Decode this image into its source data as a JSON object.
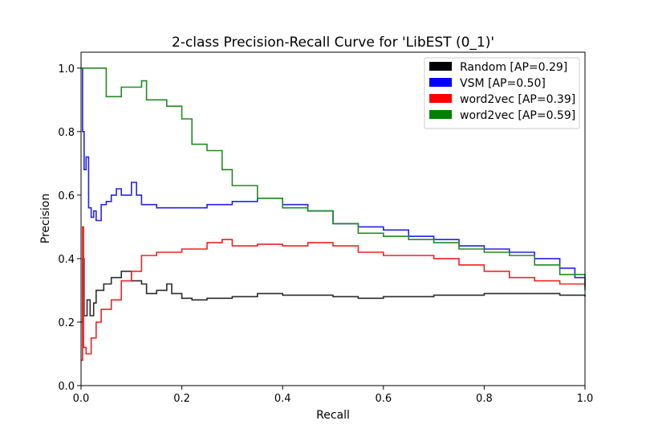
{
  "chart_data": {
    "type": "line",
    "title": "2-class Precision-Recall Curve for 'LibEST (0_1)'",
    "xlabel": "Recall",
    "ylabel": "Precision",
    "xlim": [
      0.0,
      1.0
    ],
    "ylim": [
      0.0,
      1.05
    ],
    "x_ticks": [
      "0.0",
      "0.2",
      "0.4",
      "0.6",
      "0.8",
      "1.0"
    ],
    "y_ticks": [
      "0.0",
      "0.2",
      "0.4",
      "0.6",
      "0.8",
      "1.0"
    ],
    "grid": false,
    "legend_position": "top-right",
    "series": [
      {
        "name": "Random [AP=0.29]",
        "color": "#000000",
        "line_color": "#2b2b2b",
        "points": [
          [
            0,
            0.2
          ],
          [
            0.003,
            0.4
          ],
          [
            0.006,
            0.22
          ],
          [
            0.012,
            0.27
          ],
          [
            0.018,
            0.22
          ],
          [
            0.025,
            0.26
          ],
          [
            0.03,
            0.3
          ],
          [
            0.045,
            0.32
          ],
          [
            0.06,
            0.34
          ],
          [
            0.08,
            0.36
          ],
          [
            0.1,
            0.33
          ],
          [
            0.12,
            0.32
          ],
          [
            0.13,
            0.29
          ],
          [
            0.15,
            0.3
          ],
          [
            0.17,
            0.32
          ],
          [
            0.18,
            0.29
          ],
          [
            0.2,
            0.275
          ],
          [
            0.22,
            0.27
          ],
          [
            0.25,
            0.275
          ],
          [
            0.3,
            0.28
          ],
          [
            0.35,
            0.29
          ],
          [
            0.4,
            0.285
          ],
          [
            0.45,
            0.285
          ],
          [
            0.5,
            0.28
          ],
          [
            0.55,
            0.275
          ],
          [
            0.6,
            0.28
          ],
          [
            0.65,
            0.28
          ],
          [
            0.7,
            0.285
          ],
          [
            0.75,
            0.285
          ],
          [
            0.8,
            0.29
          ],
          [
            0.85,
            0.29
          ],
          [
            0.9,
            0.29
          ],
          [
            0.95,
            0.285
          ],
          [
            1.0,
            0.28
          ]
        ]
      },
      {
        "name": "VSM [AP=0.50]",
        "color": "#0000ff",
        "line_color": "#2222ee",
        "points": [
          [
            0,
            1.0
          ],
          [
            0.003,
            0.8
          ],
          [
            0.006,
            0.68
          ],
          [
            0.01,
            0.72
          ],
          [
            0.015,
            0.56
          ],
          [
            0.02,
            0.53
          ],
          [
            0.025,
            0.55
          ],
          [
            0.03,
            0.52
          ],
          [
            0.04,
            0.57
          ],
          [
            0.05,
            0.58
          ],
          [
            0.06,
            0.6
          ],
          [
            0.07,
            0.62
          ],
          [
            0.08,
            0.6
          ],
          [
            0.1,
            0.64
          ],
          [
            0.11,
            0.6
          ],
          [
            0.12,
            0.57
          ],
          [
            0.15,
            0.56
          ],
          [
            0.2,
            0.56
          ],
          [
            0.25,
            0.57
          ],
          [
            0.3,
            0.58
          ],
          [
            0.35,
            0.59
          ],
          [
            0.4,
            0.57
          ],
          [
            0.45,
            0.55
          ],
          [
            0.5,
            0.51
          ],
          [
            0.55,
            0.5
          ],
          [
            0.6,
            0.49
          ],
          [
            0.65,
            0.47
          ],
          [
            0.7,
            0.46
          ],
          [
            0.75,
            0.44
          ],
          [
            0.8,
            0.43
          ],
          [
            0.85,
            0.42
          ],
          [
            0.9,
            0.4
          ],
          [
            0.95,
            0.37
          ],
          [
            0.98,
            0.34
          ],
          [
            1.0,
            0.31
          ]
        ]
      },
      {
        "name": "word2vec [AP=0.39]",
        "color": "#ff0000",
        "line_color": "#ee2222",
        "points": [
          [
            0,
            0.08
          ],
          [
            0.003,
            0.5
          ],
          [
            0.005,
            0.12
          ],
          [
            0.01,
            0.1
          ],
          [
            0.02,
            0.15
          ],
          [
            0.03,
            0.2
          ],
          [
            0.04,
            0.24
          ],
          [
            0.06,
            0.27
          ],
          [
            0.08,
            0.33
          ],
          [
            0.1,
            0.36
          ],
          [
            0.12,
            0.41
          ],
          [
            0.15,
            0.42
          ],
          [
            0.2,
            0.43
          ],
          [
            0.25,
            0.45
          ],
          [
            0.28,
            0.46
          ],
          [
            0.3,
            0.44
          ],
          [
            0.35,
            0.445
          ],
          [
            0.4,
            0.44
          ],
          [
            0.45,
            0.45
          ],
          [
            0.5,
            0.44
          ],
          [
            0.55,
            0.42
          ],
          [
            0.6,
            0.41
          ],
          [
            0.65,
            0.41
          ],
          [
            0.7,
            0.4
          ],
          [
            0.75,
            0.38
          ],
          [
            0.8,
            0.36
          ],
          [
            0.85,
            0.34
          ],
          [
            0.9,
            0.33
          ],
          [
            0.95,
            0.32
          ],
          [
            1.0,
            0.31
          ]
        ]
      },
      {
        "name": "word2vec [AP=0.59]",
        "color": "#008000",
        "line_color": "#228b22",
        "points": [
          [
            0,
            1.0
          ],
          [
            0.05,
            1.0
          ],
          [
            0.05,
            0.91
          ],
          [
            0.08,
            0.94
          ],
          [
            0.12,
            0.96
          ],
          [
            0.13,
            0.9
          ],
          [
            0.17,
            0.88
          ],
          [
            0.2,
            0.84
          ],
          [
            0.22,
            0.76
          ],
          [
            0.25,
            0.74
          ],
          [
            0.28,
            0.68
          ],
          [
            0.3,
            0.63
          ],
          [
            0.35,
            0.59
          ],
          [
            0.4,
            0.56
          ],
          [
            0.45,
            0.55
          ],
          [
            0.5,
            0.51
          ],
          [
            0.55,
            0.48
          ],
          [
            0.6,
            0.47
          ],
          [
            0.65,
            0.46
          ],
          [
            0.7,
            0.45
          ],
          [
            0.75,
            0.43
          ],
          [
            0.8,
            0.42
          ],
          [
            0.85,
            0.41
          ],
          [
            0.9,
            0.38
          ],
          [
            0.95,
            0.35
          ],
          [
            1.0,
            0.3
          ]
        ]
      }
    ]
  }
}
